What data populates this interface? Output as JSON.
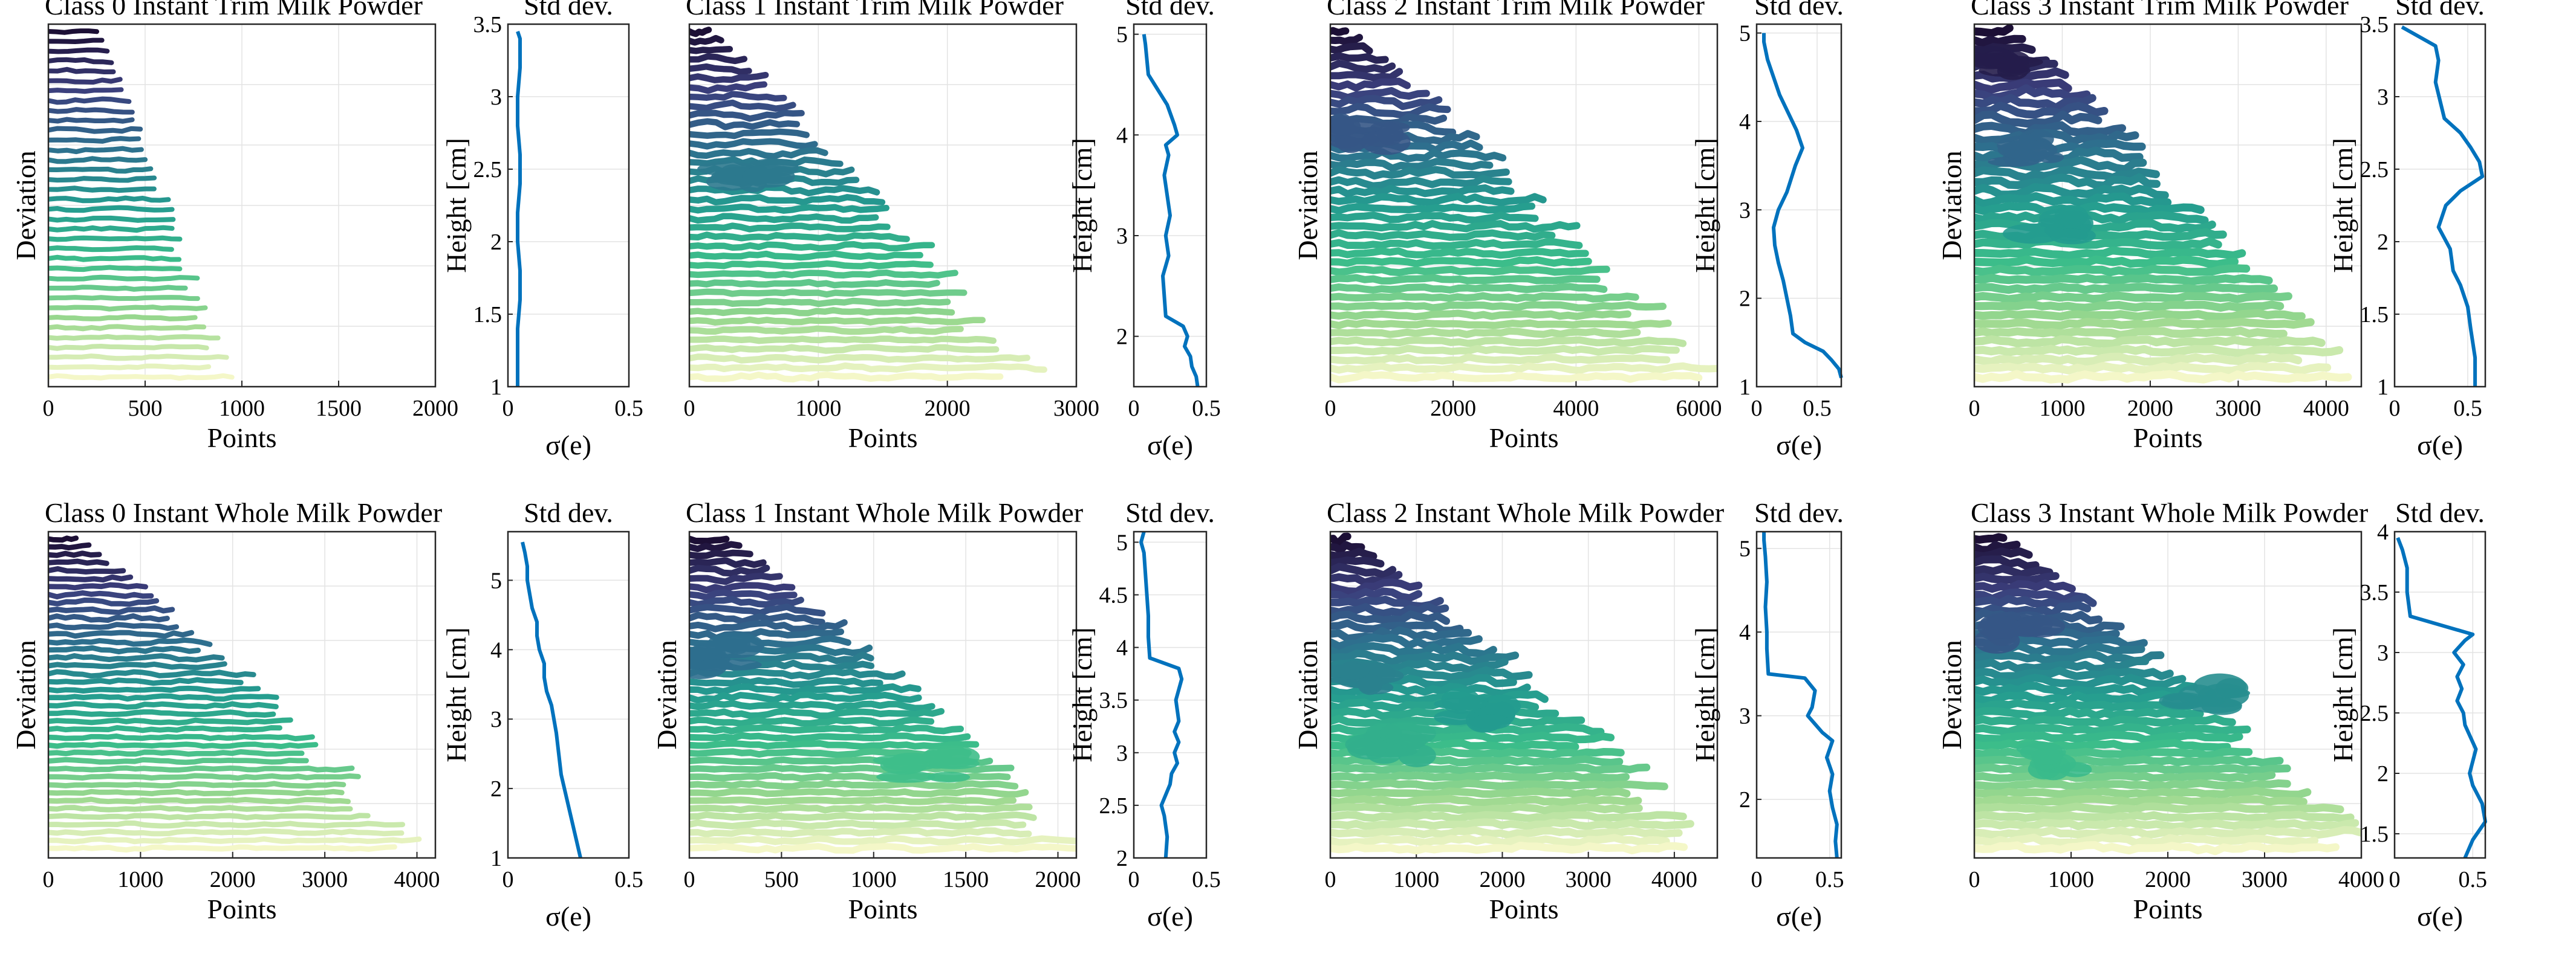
{
  "figure_caption_colors": {
    "sd_line": "#0072bd",
    "colormap": [
      "#1c0f35",
      "#3b3f7d",
      "#2e6f8e",
      "#249b8f",
      "#3cbd8a",
      "#9ad88e",
      "#f4f7c8"
    ]
  },
  "chart_data": [
    {
      "type": "line",
      "row": 0,
      "col": 0,
      "title": "Class 0 Instant Trim Milk Powder",
      "xlabel": "Points",
      "ylabel": "Deviation",
      "xlim": [
        0,
        2000
      ],
      "xticks": [
        "0",
        "500",
        "1000",
        "1500",
        "2000"
      ],
      "layers": 36,
      "max_points": [
        250,
        900
      ],
      "roughness": 0.15,
      "blobs": [],
      "sd": {
        "title": "Std dev.",
        "xlabel": "σ(e)",
        "ylabel": "Height [cm]",
        "xlim": [
          0,
          0.5
        ],
        "ylim": [
          1,
          3.5
        ],
        "xticks": [
          "0",
          "0.5"
        ],
        "yticks": [
          "1",
          "1.5",
          "2",
          "2.5",
          "3",
          "3.5"
        ],
        "x": [
          0.04,
          0.04,
          0.04,
          0.05,
          0.05,
          0.04,
          0.04,
          0.05,
          0.05,
          0.04,
          0.04,
          0.05,
          0.05,
          0.04
        ],
        "y": [
          1.0,
          1.2,
          1.4,
          1.6,
          1.8,
          2.0,
          2.2,
          2.4,
          2.6,
          2.8,
          3.0,
          3.2,
          3.4,
          3.45
        ]
      }
    },
    {
      "type": "line",
      "row": 0,
      "col": 1,
      "title": "Class 1 Instant Trim Milk Powder",
      "xlabel": "Points",
      "ylabel": "",
      "xlim": [
        0,
        3000
      ],
      "xticks": [
        "0",
        "1000",
        "2000",
        "3000"
      ],
      "layers": 38,
      "max_points": [
        150,
        2600
      ],
      "roughness": 0.5,
      "blobs": [
        [
          500,
          0.42
        ]
      ],
      "sd": {
        "title": "Std dev.",
        "xlabel": "σ(e)",
        "ylabel": "Height [cm]",
        "xlim": [
          0,
          0.5
        ],
        "ylim": [
          1.5,
          5.1
        ],
        "xticks": [
          "0",
          "0.5"
        ],
        "yticks": [
          "2",
          "3",
          "4",
          "5"
        ],
        "x": [
          0.44,
          0.43,
          0.4,
          0.39,
          0.35,
          0.37,
          0.34,
          0.22,
          0.21,
          0.2,
          0.24,
          0.22,
          0.25,
          0.23,
          0.21,
          0.24,
          0.22,
          0.3,
          0.28,
          0.23,
          0.1,
          0.08,
          0.07
        ],
        "y": [
          1.5,
          1.6,
          1.7,
          1.8,
          1.9,
          2.0,
          2.1,
          2.2,
          2.4,
          2.6,
          2.8,
          3.0,
          3.2,
          3.4,
          3.6,
          3.8,
          3.9,
          4.0,
          4.1,
          4.3,
          4.6,
          4.9,
          5.0
        ]
      }
    },
    {
      "type": "line",
      "row": 0,
      "col": 2,
      "title": "Class 2 Instant Trim Milk Powder",
      "xlabel": "Points",
      "ylabel": "Deviation",
      "xlim": [
        0,
        6300
      ],
      "xticks": [
        "0",
        "2000",
        "4000",
        "6000"
      ],
      "layers": 40,
      "max_points": [
        250,
        6200
      ],
      "roughness": 0.7,
      "blobs": [
        [
          600,
          0.3
        ]
      ],
      "sd": {
        "title": "Std dev.",
        "xlabel": "σ(e)",
        "ylabel": "Height [cm]",
        "xlim": [
          0,
          0.7
        ],
        "ylim": [
          1,
          5.1
        ],
        "xticks": [
          "0",
          "0.5"
        ],
        "yticks": [
          "1",
          "2",
          "3",
          "4",
          "5"
        ],
        "x": [
          0.7,
          0.68,
          0.62,
          0.55,
          0.4,
          0.3,
          0.28,
          0.25,
          0.22,
          0.18,
          0.15,
          0.14,
          0.18,
          0.25,
          0.32,
          0.38,
          0.33,
          0.26,
          0.19,
          0.14,
          0.09,
          0.06,
          0.06
        ],
        "y": [
          1.1,
          1.2,
          1.3,
          1.4,
          1.5,
          1.6,
          1.8,
          2.0,
          2.2,
          2.4,
          2.6,
          2.8,
          3.0,
          3.2,
          3.5,
          3.7,
          3.9,
          4.1,
          4.3,
          4.5,
          4.7,
          4.9,
          5.0
        ]
      }
    },
    {
      "type": "line",
      "row": 0,
      "col": 3,
      "title": "Class 3 Instant Trim Milk Powder",
      "xlabel": "Points",
      "ylabel": "Deviation",
      "xlim": [
        0,
        4400
      ],
      "xticks": [
        "0",
        "1000",
        "2000",
        "3000",
        "4000"
      ],
      "layers": 40,
      "max_points": [
        400,
        4200
      ],
      "roughness": 0.9,
      "blobs": [
        [
          200,
          0.1
        ],
        [
          600,
          0.35
        ],
        [
          900,
          0.55
        ]
      ],
      "sd": {
        "title": "Std dev.",
        "xlabel": "σ(e)",
        "ylabel": "Height [cm]",
        "xlim": [
          0,
          0.62
        ],
        "ylim": [
          1,
          3.5
        ],
        "xticks": [
          "0",
          "0.5"
        ],
        "yticks": [
          "1",
          "1.5",
          "2",
          "2.5",
          "3",
          "3.5"
        ],
        "x": [
          0.55,
          0.55,
          0.52,
          0.5,
          0.45,
          0.4,
          0.38,
          0.3,
          0.35,
          0.45,
          0.6,
          0.58,
          0.52,
          0.45,
          0.34,
          0.28,
          0.3,
          0.28,
          0.05
        ],
        "y": [
          1.0,
          1.2,
          1.4,
          1.55,
          1.7,
          1.8,
          1.95,
          2.1,
          2.25,
          2.35,
          2.45,
          2.55,
          2.65,
          2.75,
          2.85,
          3.1,
          3.25,
          3.35,
          3.48
        ]
      }
    },
    {
      "type": "line",
      "row": 1,
      "col": 0,
      "title": "Class 0 Instant Whole Milk Powder",
      "xlabel": "Points",
      "ylabel": "Deviation",
      "xlim": [
        0,
        4200
      ],
      "xticks": [
        "0",
        "1000",
        "2000",
        "3000",
        "4000"
      ],
      "layers": 40,
      "max_points": [
        300,
        4000
      ],
      "roughness": 0.25,
      "blobs": [],
      "sd": {
        "title": "Std dev.",
        "xlabel": "σ(e)",
        "ylabel": "Height [cm]",
        "xlim": [
          0,
          0.5
        ],
        "ylim": [
          1,
          5.7
        ],
        "xticks": [
          "0",
          "0.5"
        ],
        "yticks": [
          "1",
          "2",
          "3",
          "4",
          "5"
        ],
        "x": [
          0.3,
          0.28,
          0.26,
          0.24,
          0.22,
          0.21,
          0.2,
          0.19,
          0.18,
          0.16,
          0.15,
          0.15,
          0.13,
          0.12,
          0.12,
          0.1,
          0.09,
          0.08,
          0.08,
          0.07,
          0.06
        ],
        "y": [
          1.0,
          1.3,
          1.6,
          1.9,
          2.2,
          2.5,
          2.8,
          3.0,
          3.2,
          3.4,
          3.6,
          3.8,
          4.0,
          4.2,
          4.4,
          4.6,
          4.8,
          5.0,
          5.2,
          5.4,
          5.55
        ]
      }
    },
    {
      "type": "line",
      "row": 1,
      "col": 1,
      "title": "Class 1 Instant Whole Milk Powder",
      "xlabel": "Points",
      "ylabel": "Deviation",
      "xlim": [
        0,
        2100
      ],
      "xticks": [
        "0",
        "500",
        "1000",
        "1500",
        "2000"
      ],
      "layers": 40,
      "max_points": [
        200,
        2050
      ],
      "roughness": 0.55,
      "blobs": [
        [
          150,
          0.38
        ],
        [
          1300,
          0.72
        ]
      ],
      "sd": {
        "title": "Std dev.",
        "xlabel": "σ(e)",
        "ylabel": "Height [cm]",
        "xlim": [
          0,
          0.5
        ],
        "ylim": [
          2,
          5.1
        ],
        "xticks": [
          "0",
          "0.5"
        ],
        "yticks": [
          "2",
          "2.5",
          "3",
          "3.5",
          "4",
          "4.5",
          "5"
        ],
        "x": [
          0.22,
          0.23,
          0.21,
          0.19,
          0.22,
          0.25,
          0.26,
          0.3,
          0.28,
          0.31,
          0.28,
          0.31,
          0.29,
          0.33,
          0.31,
          0.11,
          0.1,
          0.1,
          0.09,
          0.08,
          0.07,
          0.05,
          0.07
        ],
        "y": [
          2.0,
          2.2,
          2.4,
          2.5,
          2.6,
          2.7,
          2.8,
          2.9,
          3.0,
          3.1,
          3.2,
          3.3,
          3.5,
          3.7,
          3.8,
          3.9,
          4.1,
          4.3,
          4.5,
          4.7,
          4.9,
          5.0,
          5.1
        ]
      }
    },
    {
      "type": "line",
      "row": 1,
      "col": 2,
      "title": "Class 2 Instant Whole Milk Powder",
      "xlabel": "Points",
      "ylabel": "Deviation",
      "xlim": [
        0,
        4500
      ],
      "xticks": [
        "0",
        "1000",
        "2000",
        "3000",
        "4000"
      ],
      "layers": 40,
      "max_points": [
        200,
        4400
      ],
      "roughness": 0.8,
      "blobs": [
        [
          400,
          0.45
        ],
        [
          700,
          0.65
        ],
        [
          1700,
          0.55
        ]
      ],
      "sd": {
        "title": "Std dev.",
        "xlabel": "σ(e)",
        "ylabel": "Height [cm]",
        "xlim": [
          0,
          0.58
        ],
        "ylim": [
          1.3,
          5.2
        ],
        "xticks": [
          "0",
          "0.5"
        ],
        "yticks": [
          "2",
          "3",
          "4",
          "5"
        ],
        "x": [
          0.55,
          0.54,
          0.55,
          0.52,
          0.5,
          0.52,
          0.48,
          0.52,
          0.45,
          0.4,
          0.35,
          0.38,
          0.4,
          0.33,
          0.08,
          0.07,
          0.07,
          0.06,
          0.07,
          0.06,
          0.05,
          0.05
        ],
        "y": [
          1.3,
          1.5,
          1.7,
          1.9,
          2.1,
          2.3,
          2.5,
          2.7,
          2.8,
          2.9,
          3.0,
          3.1,
          3.3,
          3.45,
          3.5,
          3.8,
          4.0,
          4.3,
          4.6,
          4.9,
          5.1,
          5.2
        ]
      }
    },
    {
      "type": "line",
      "row": 1,
      "col": 3,
      "title": "Class 3 Instant Whole Milk Powder",
      "xlabel": "Points",
      "ylabel": "Deviation",
      "xlim": [
        0,
        4000
      ],
      "xticks": [
        "0",
        "1000",
        "2000",
        "3000",
        "4000"
      ],
      "layers": 40,
      "max_points": [
        300,
        3900
      ],
      "roughness": 0.85,
      "blobs": [
        [
          400,
          0.3
        ],
        [
          2400,
          0.5
        ],
        [
          900,
          0.7
        ]
      ],
      "sd": {
        "title": "Std dev.",
        "xlabel": "σ(e)",
        "ylabel": "Height [cm]",
        "xlim": [
          0,
          0.58
        ],
        "ylim": [
          1.3,
          4.0
        ],
        "xticks": [
          "0",
          "0.5"
        ],
        "yticks": [
          "1.5",
          "2",
          "2.5",
          "3",
          "3.5",
          "4"
        ],
        "x": [
          0.45,
          0.5,
          0.58,
          0.56,
          0.5,
          0.48,
          0.52,
          0.45,
          0.44,
          0.4,
          0.43,
          0.4,
          0.44,
          0.38,
          0.45,
          0.5,
          0.1,
          0.08,
          0.08,
          0.05,
          0.02
        ],
        "y": [
          1.3,
          1.45,
          1.6,
          1.75,
          1.9,
          2.0,
          2.2,
          2.4,
          2.5,
          2.6,
          2.7,
          2.8,
          2.9,
          3.0,
          3.1,
          3.15,
          3.3,
          3.5,
          3.7,
          3.85,
          3.95
        ]
      }
    }
  ]
}
